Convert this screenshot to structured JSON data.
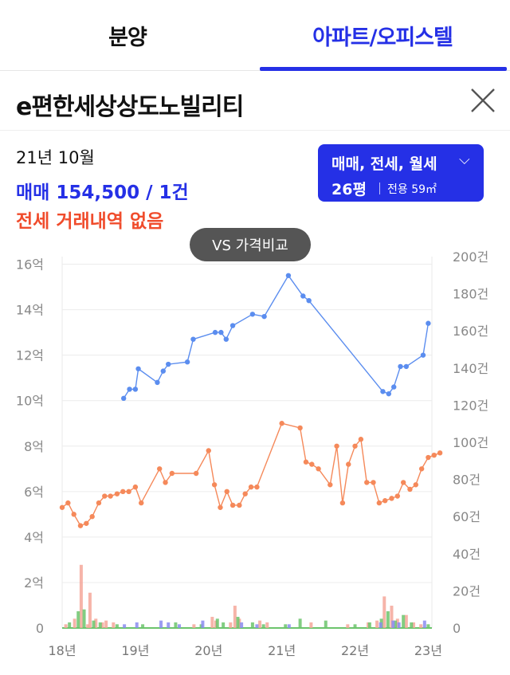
{
  "tabs": [
    {
      "label": "분양"
    },
    {
      "label": "아파트/오피스텔"
    }
  ],
  "header": {
    "title": "e편한세상상도노빌리티"
  },
  "summary": {
    "date": "21년 10월",
    "sale": "매매 154,500 / 1건",
    "jeonse": "전세 거래내역 없음"
  },
  "selector": {
    "types": "매매, 전세, 월세",
    "chevron": "⌵",
    "pyeong": "26평",
    "area": "전용 59㎡"
  },
  "vs_button": {
    "label": "VS 가격비교"
  },
  "colors": {
    "accent": "#2530e6",
    "jeonse": "#f04c2c",
    "sale_line": "#5b8def",
    "jeonse_line": "#f5895a",
    "vol_sale": "#8b8cf0",
    "vol_jeonse": "#f5a79a",
    "vol_rent": "#6cc46c"
  },
  "chart_data": {
    "type": "line",
    "x_ticks": [
      "18년",
      "19년",
      "20년",
      "21년",
      "22년",
      "23년"
    ],
    "y_left_ticks": [
      "0",
      "2억",
      "4억",
      "6억",
      "8억",
      "10억",
      "12억",
      "14억",
      "16억"
    ],
    "y_right_ticks": [
      "0",
      "20건",
      "40건",
      "60건",
      "80건",
      "100건",
      "120건",
      "140건",
      "160건",
      "180건",
      "200건"
    ],
    "ylim_left": [
      0,
      17
    ],
    "ylim_right": [
      0,
      200
    ],
    "xlim": [
      2018.0,
      2023.05
    ],
    "grid": true,
    "series": [
      {
        "key": "sale",
        "points": [
          [
            2018.84,
            10.1
          ],
          [
            2018.92,
            10.5
          ],
          [
            2019.0,
            10.5
          ],
          [
            2019.04,
            11.4
          ],
          [
            2019.3,
            10.8
          ],
          [
            2019.38,
            11.3
          ],
          [
            2019.45,
            11.6
          ],
          [
            2019.71,
            11.7
          ],
          [
            2019.79,
            12.7
          ],
          [
            2020.09,
            13.0
          ],
          [
            2020.17,
            13.0
          ],
          [
            2020.24,
            12.7
          ],
          [
            2020.33,
            13.3
          ],
          [
            2020.6,
            13.8
          ],
          [
            2020.76,
            13.7
          ],
          [
            2021.09,
            15.5
          ],
          [
            2021.29,
            14.6
          ],
          [
            2021.37,
            14.4
          ],
          [
            2022.38,
            10.4
          ],
          [
            2022.46,
            10.3
          ],
          [
            2022.53,
            10.6
          ],
          [
            2022.62,
            11.5
          ],
          [
            2022.7,
            11.5
          ],
          [
            2022.93,
            12.0
          ],
          [
            2023.0,
            13.4
          ]
        ]
      },
      {
        "key": "jeonse",
        "points": [
          [
            2018.0,
            5.3
          ],
          [
            2018.08,
            5.5
          ],
          [
            2018.16,
            5.0
          ],
          [
            2018.25,
            4.5
          ],
          [
            2018.33,
            4.6
          ],
          [
            2018.41,
            4.9
          ],
          [
            2018.5,
            5.5
          ],
          [
            2018.58,
            5.8
          ],
          [
            2018.66,
            5.8
          ],
          [
            2018.75,
            5.9
          ],
          [
            2018.83,
            6.0
          ],
          [
            2018.91,
            6.0
          ],
          [
            2019.0,
            6.2
          ],
          [
            2019.08,
            5.5
          ],
          [
            2019.33,
            7.0
          ],
          [
            2019.41,
            6.4
          ],
          [
            2019.5,
            6.8
          ],
          [
            2019.83,
            6.8
          ],
          [
            2020.0,
            7.8
          ],
          [
            2020.08,
            6.3
          ],
          [
            2020.16,
            5.3
          ],
          [
            2020.25,
            6.0
          ],
          [
            2020.33,
            5.4
          ],
          [
            2020.42,
            5.4
          ],
          [
            2020.5,
            5.9
          ],
          [
            2020.58,
            6.2
          ],
          [
            2020.66,
            6.2
          ],
          [
            2021.0,
            9.0
          ],
          [
            2021.25,
            8.8
          ],
          [
            2021.33,
            7.3
          ],
          [
            2021.41,
            7.2
          ],
          [
            2021.5,
            7.0
          ],
          [
            2021.66,
            6.3
          ],
          [
            2021.75,
            8.0
          ],
          [
            2021.83,
            5.5
          ],
          [
            2021.91,
            7.2
          ],
          [
            2022.0,
            8.0
          ],
          [
            2022.08,
            8.3
          ],
          [
            2022.16,
            6.4
          ],
          [
            2022.25,
            6.4
          ],
          [
            2022.33,
            5.5
          ],
          [
            2022.41,
            5.6
          ],
          [
            2022.5,
            5.7
          ],
          [
            2022.58,
            5.8
          ],
          [
            2022.66,
            6.4
          ],
          [
            2022.75,
            6.1
          ],
          [
            2022.83,
            6.3
          ],
          [
            2022.91,
            7.0
          ],
          [
            2023.0,
            7.5
          ],
          [
            2023.08,
            7.6
          ],
          [
            2023.16,
            7.7
          ]
        ]
      }
    ],
    "volume": {
      "jeonse": [
        [
          2018.05,
          2
        ],
        [
          2018.17,
          5
        ],
        [
          2018.26,
          34
        ],
        [
          2018.35,
          2
        ],
        [
          2018.38,
          19
        ],
        [
          2018.46,
          5
        ],
        [
          2018.55,
          3
        ],
        [
          2018.6,
          4
        ],
        [
          2018.7,
          3
        ],
        [
          2019.8,
          2
        ],
        [
          2020.05,
          6
        ],
        [
          2020.1,
          4
        ],
        [
          2020.3,
          3
        ],
        [
          2020.36,
          12
        ],
        [
          2020.42,
          5
        ],
        [
          2020.7,
          4
        ],
        [
          2020.8,
          3
        ],
        [
          2021.4,
          3
        ],
        [
          2021.9,
          2
        ],
        [
          2022.18,
          3
        ],
        [
          2022.3,
          4
        ],
        [
          2022.4,
          17
        ],
        [
          2022.5,
          12
        ],
        [
          2022.58,
          5
        ],
        [
          2022.7,
          7
        ],
        [
          2022.8,
          3
        ],
        [
          2022.9,
          2
        ]
      ],
      "rent": [
        [
          2018.1,
          3
        ],
        [
          2018.22,
          9
        ],
        [
          2018.3,
          10
        ],
        [
          2018.43,
          4
        ],
        [
          2018.52,
          3
        ],
        [
          2018.75,
          2
        ],
        [
          2019.1,
          2
        ],
        [
          2019.55,
          3
        ],
        [
          2019.9,
          2
        ],
        [
          2020.12,
          5
        ],
        [
          2020.2,
          3
        ],
        [
          2020.4,
          6
        ],
        [
          2020.6,
          3
        ],
        [
          2020.75,
          2
        ],
        [
          2021.05,
          2
        ],
        [
          2021.25,
          5
        ],
        [
          2021.6,
          4
        ],
        [
          2022.0,
          2
        ],
        [
          2022.2,
          3
        ],
        [
          2022.36,
          5
        ],
        [
          2022.45,
          9
        ],
        [
          2022.55,
          4
        ],
        [
          2022.66,
          7
        ],
        [
          2022.77,
          3
        ],
        [
          2023.0,
          2
        ]
      ],
      "sale": [
        [
          2018.85,
          2
        ],
        [
          2019.02,
          3
        ],
        [
          2019.35,
          4
        ],
        [
          2019.45,
          3
        ],
        [
          2019.6,
          2
        ],
        [
          2019.92,
          4
        ],
        [
          2020.45,
          3
        ],
        [
          2020.66,
          2
        ],
        [
          2021.1,
          2
        ],
        [
          2022.35,
          3
        ],
        [
          2022.52,
          4
        ],
        [
          2022.6,
          3
        ],
        [
          2022.95,
          4
        ]
      ]
    }
  }
}
